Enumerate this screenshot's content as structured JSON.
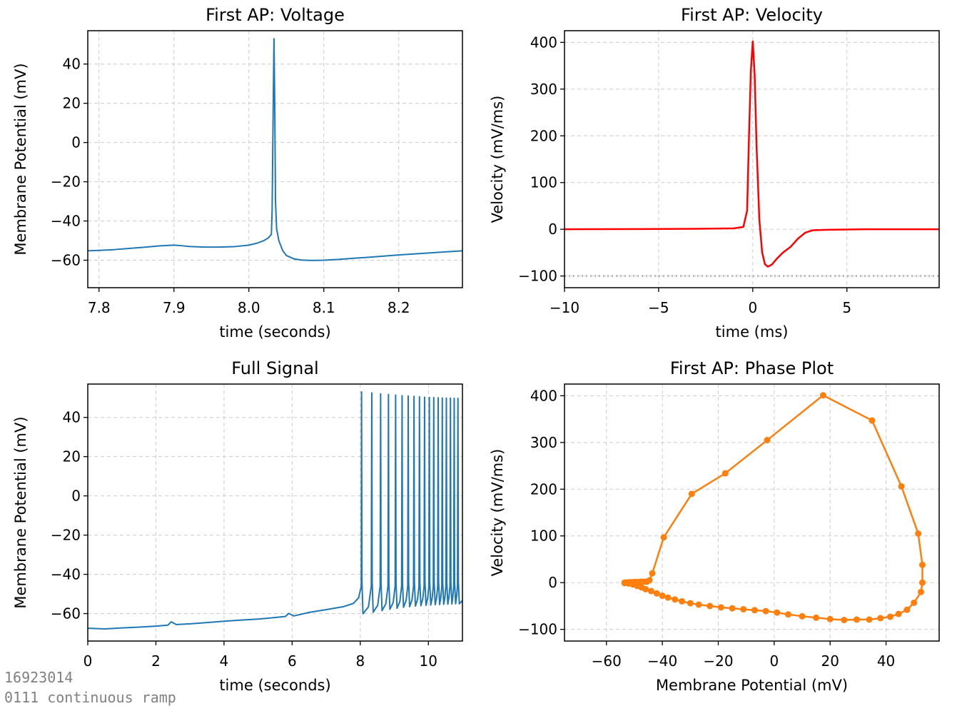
{
  "footnote": {
    "line1": "16923014",
    "line2": "0111 continuous ramp"
  },
  "colors": {
    "voltage": "#1f77b4",
    "velocity": "#ff0000",
    "phase": "#ff7f0e",
    "grid": "#cccccc",
    "zero_ref": "#bbbbbb"
  },
  "chart_data": [
    {
      "id": "voltage",
      "type": "line",
      "title": "First AP: Voltage",
      "xlabel": "time (seconds)",
      "ylabel": "Membrane Potential (mV)",
      "xlim": [
        7.785,
        8.285
      ],
      "ylim": [
        -74,
        57
      ],
      "xticks": [
        7.8,
        7.9,
        8.0,
        8.1,
        8.2
      ],
      "xtick_labels": [
        "7.8",
        "7.9",
        "8.0",
        "8.1",
        "8.2"
      ],
      "yticks": [
        -60,
        -40,
        -20,
        0,
        20,
        40
      ],
      "ytick_labels": [
        "−60",
        "−40",
        "−20",
        "0",
        "20",
        "40"
      ],
      "grid": true,
      "series": [
        {
          "color": "#1f77b4",
          "x": [
            7.785,
            7.8,
            7.82,
            7.84,
            7.86,
            7.88,
            7.9,
            7.91,
            7.92,
            7.94,
            7.96,
            7.98,
            8.0,
            8.01,
            8.02,
            8.026,
            8.03,
            8.031,
            8.0325,
            8.0335,
            8.0345,
            8.0355,
            8.037,
            8.04,
            8.045,
            8.05,
            8.06,
            8.07,
            8.08,
            8.09,
            8.1,
            8.12,
            8.14,
            8.16,
            8.18,
            8.2,
            8.22,
            8.24,
            8.26,
            8.285
          ],
          "y": [
            -55.2,
            -55.0,
            -54.6,
            -54.0,
            -53.4,
            -52.7,
            -52.3,
            -52.6,
            -53.0,
            -53.3,
            -53.3,
            -53.1,
            -52.3,
            -51.4,
            -50.0,
            -48.6,
            -46.8,
            -35.0,
            20.0,
            52.9,
            20.0,
            -30.0,
            -44.0,
            -50.0,
            -55.0,
            -57.6,
            -59.3,
            -59.9,
            -60.1,
            -60.1,
            -60.0,
            -59.6,
            -59.0,
            -58.5,
            -57.9,
            -57.3,
            -56.8,
            -56.3,
            -55.8,
            -55.2
          ]
        }
      ]
    },
    {
      "id": "velocity",
      "type": "line",
      "title": "First AP: Velocity",
      "xlabel": "time (ms)",
      "ylabel": "Velocity (mV/ms)",
      "xlim": [
        -10,
        9.9
      ],
      "ylim": [
        -125,
        425
      ],
      "xticks": [
        -10,
        -5,
        0,
        5
      ],
      "xtick_labels": [
        "−10",
        "−5",
        "0",
        "5"
      ],
      "yticks": [
        -100,
        0,
        100,
        200,
        300,
        400
      ],
      "ytick_labels": [
        "−100",
        "0",
        "100",
        "200",
        "300",
        "400"
      ],
      "grid": true,
      "reference_line_y": -100,
      "series": [
        {
          "color": "#ff0000",
          "x": [
            -10,
            -6,
            -3,
            -1,
            -0.5,
            -0.3,
            -0.2,
            -0.1,
            0.0,
            0.1,
            0.2,
            0.35,
            0.5,
            0.65,
            0.8,
            1.0,
            1.3,
            1.6,
            2.0,
            2.4,
            2.8,
            3.2,
            4.0,
            6.0,
            9.9
          ],
          "y": [
            0,
            0.5,
            1,
            2,
            5,
            40,
            200,
            340,
            402,
            330,
            180,
            20,
            -50,
            -75,
            -80,
            -76,
            -62,
            -50,
            -38,
            -20,
            -7,
            -2,
            -1,
            0,
            0
          ]
        }
      ]
    },
    {
      "id": "full",
      "type": "line",
      "title": "Full Signal",
      "xlabel": "time (seconds)",
      "ylabel": "Membrane Potential (mV)",
      "xlim": [
        0,
        11
      ],
      "ylim": [
        -74,
        57
      ],
      "xticks": [
        0,
        2,
        4,
        6,
        8,
        10
      ],
      "xtick_labels": [
        "0",
        "2",
        "4",
        "6",
        "8",
        "10"
      ],
      "yticks": [
        -60,
        -40,
        -20,
        0,
        20,
        40
      ],
      "ytick_labels": [
        "−60",
        "−40",
        "−20",
        "0",
        "20",
        "40"
      ],
      "grid": true,
      "baseline": {
        "x": [
          0,
          0.5,
          1.0,
          1.5,
          2.0,
          2.35,
          2.45,
          2.6,
          3.0,
          3.5,
          4.0,
          4.5,
          5.0,
          5.5,
          5.8,
          5.9,
          6.05,
          6.5,
          7.0,
          7.5,
          7.8,
          7.95,
          8.03
        ],
        "y": [
          -67.5,
          -67.8,
          -67.3,
          -66.9,
          -66.4,
          -65.9,
          -64.2,
          -65.6,
          -65.2,
          -64.6,
          -63.9,
          -63.3,
          -62.8,
          -62.0,
          -61.5,
          -59.9,
          -61.2,
          -59.4,
          -58.0,
          -56.5,
          -54.8,
          -52.0,
          -46.0
        ]
      },
      "spike_times": [
        8.03,
        8.33,
        8.59,
        8.82,
        9.03,
        9.22,
        9.4,
        9.57,
        9.73,
        9.88,
        10.02,
        10.15,
        10.28,
        10.4,
        10.52,
        10.64,
        10.75,
        10.86
      ],
      "spike_peaks": [
        53,
        52.5,
        52,
        51.7,
        51.4,
        51.1,
        50.9,
        50.7,
        50.5,
        50.3,
        50.2,
        50.1,
        50,
        49.9,
        49.8,
        49.8,
        49.7,
        49.7
      ],
      "spike_troughs": [
        -60.1,
        -59.3,
        -58.5,
        -57.8,
        -57.3,
        -56.8,
        -56.5,
        -56.2,
        -56.0,
        -55.8,
        -55.6,
        -55.5,
        -55.4,
        -55.3,
        -55.2,
        -55.1,
        -55.0,
        -55.0
      ],
      "series": [
        {
          "color": "#1f77b4"
        }
      ]
    },
    {
      "id": "phase",
      "type": "scatter",
      "title": "First AP: Phase Plot",
      "xlabel": "Membrane Potential (mV)",
      "ylabel": "Velocity (mV/ms)",
      "xlim": [
        -75,
        59
      ],
      "ylim": [
        -125,
        425
      ],
      "xticks": [
        -60,
        -40,
        -20,
        0,
        20,
        40
      ],
      "xtick_labels": [
        "−60",
        "−40",
        "−20",
        "0",
        "20",
        "40"
      ],
      "yticks": [
        -100,
        0,
        100,
        200,
        300,
        400
      ],
      "ytick_labels": [
        "−100",
        "0",
        "100",
        "200",
        "300",
        "400"
      ],
      "grid": true,
      "series": [
        {
          "color": "#ff7f0e",
          "x": [
            -53.5,
            -52.5,
            -51.5,
            -50.5,
            -49.5,
            -48.5,
            -47.5,
            -46.5,
            -45.5,
            -44.6,
            -43.6,
            -39.5,
            -29.5,
            -17.5,
            -2.5,
            17.5,
            35,
            45.5,
            51.5,
            53,
            53,
            52.5,
            50,
            47.5,
            44.5,
            41.5,
            38,
            34,
            29.5,
            25,
            20,
            15,
            10,
            5,
            1,
            -3,
            -7,
            -11,
            -15,
            -19,
            -23,
            -27,
            -30,
            -33,
            -35.5,
            -38,
            -40,
            -42,
            -44,
            -46,
            -47.5,
            -49,
            -50.5,
            -52,
            -53.5
          ],
          "y": [
            0,
            0.5,
            1,
            1,
            1.5,
            1.5,
            2,
            2,
            2,
            5,
            20,
            97,
            190,
            234,
            305,
            401,
            347,
            206,
            105,
            38,
            0,
            -20,
            -43,
            -58,
            -67,
            -73,
            -76,
            -79,
            -79,
            -80,
            -78,
            -75,
            -72,
            -68,
            -64,
            -61,
            -59,
            -57,
            -55,
            -53,
            -50,
            -47,
            -44,
            -40,
            -36,
            -32,
            -28,
            -23,
            -18,
            -14,
            -10,
            -7,
            -4,
            -2,
            -1
          ]
        }
      ]
    }
  ]
}
